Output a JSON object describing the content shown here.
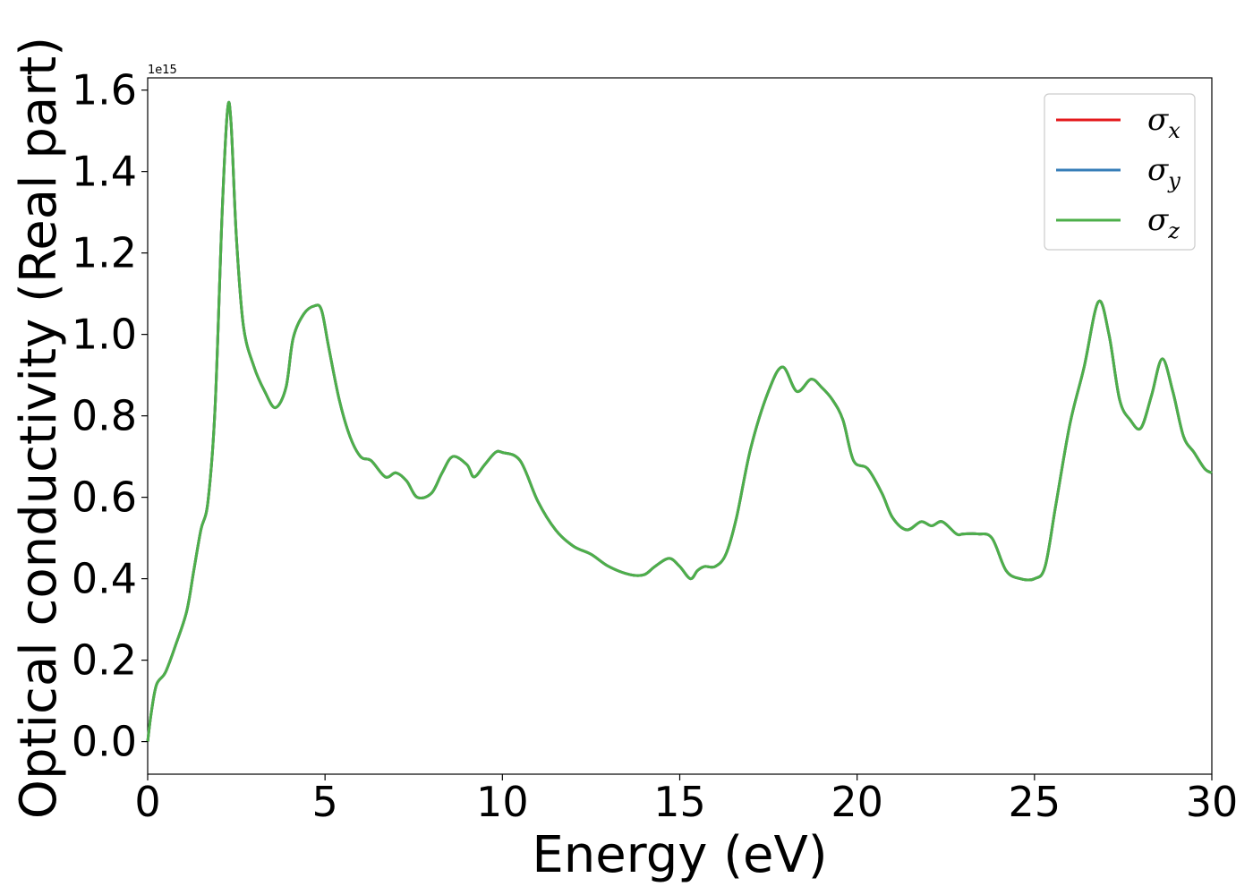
{
  "chart_data": {
    "type": "line",
    "title": "",
    "xlabel": "Energy (eV)",
    "ylabel": "Optical conductivity (Real part)",
    "y_offset_label": "1e15",
    "xlim": [
      0,
      30
    ],
    "ylim": [
      -0.08,
      1.63
    ],
    "xticks": [
      0,
      5,
      10,
      15,
      20,
      25,
      30
    ],
    "xtick_labels": [
      "0",
      "5",
      "10",
      "15",
      "20",
      "25",
      "30"
    ],
    "yticks": [
      0.0,
      0.2,
      0.4,
      0.6,
      0.8,
      1.0,
      1.2,
      1.4,
      1.6
    ],
    "ytick_labels": [
      "0.0",
      "0.2",
      "0.4",
      "0.6",
      "0.8",
      "1.0",
      "1.2",
      "1.4",
      "1.6"
    ],
    "grid": false,
    "legend": "top-right",
    "x": [
      0,
      0.1,
      0.25,
      0.5,
      0.8,
      1.1,
      1.3,
      1.5,
      1.7,
      1.9,
      2.1,
      2.25,
      2.35,
      2.5,
      2.7,
      3.0,
      3.3,
      3.6,
      3.9,
      4.1,
      4.4,
      4.7,
      4.9,
      5.1,
      5.4,
      5.7,
      6.0,
      6.3,
      6.7,
      7.0,
      7.3,
      7.6,
      8.0,
      8.3,
      8.6,
      9.0,
      9.2,
      9.5,
      9.8,
      10.0,
      10.5,
      11.0,
      11.5,
      12.0,
      12.5,
      13.0,
      13.6,
      14.0,
      14.3,
      14.7,
      15.0,
      15.3,
      15.5,
      15.7,
      16.0,
      16.3,
      16.6,
      17.0,
      17.5,
      17.9,
      18.3,
      18.7,
      19.0,
      19.3,
      19.6,
      19.9,
      20.3,
      20.7,
      21.0,
      21.4,
      21.8,
      22.1,
      22.4,
      22.8,
      23.0,
      23.4,
      23.8,
      24.2,
      24.6,
      25.0,
      25.3,
      25.6,
      26.0,
      26.4,
      26.8,
      27.1,
      27.4,
      27.7,
      28.0,
      28.3,
      28.6,
      28.9,
      29.2,
      29.5,
      29.8,
      30.0
    ],
    "series": [
      {
        "name": "σx",
        "color": "#e41a1c",
        "values": [
          0.0,
          0.07,
          0.14,
          0.17,
          0.24,
          0.32,
          0.42,
          0.52,
          0.59,
          0.82,
          1.3,
          1.55,
          1.52,
          1.24,
          1.02,
          0.92,
          0.86,
          0.82,
          0.87,
          0.99,
          1.05,
          1.07,
          1.06,
          0.97,
          0.84,
          0.75,
          0.7,
          0.69,
          0.65,
          0.66,
          0.64,
          0.6,
          0.61,
          0.66,
          0.7,
          0.68,
          0.65,
          0.68,
          0.71,
          0.71,
          0.69,
          0.59,
          0.52,
          0.48,
          0.46,
          0.43,
          0.41,
          0.41,
          0.43,
          0.45,
          0.43,
          0.4,
          0.42,
          0.43,
          0.43,
          0.46,
          0.55,
          0.72,
          0.86,
          0.92,
          0.86,
          0.89,
          0.87,
          0.84,
          0.79,
          0.69,
          0.67,
          0.61,
          0.55,
          0.52,
          0.54,
          0.53,
          0.54,
          0.51,
          0.51,
          0.51,
          0.5,
          0.42,
          0.4,
          0.4,
          0.43,
          0.58,
          0.78,
          0.92,
          1.08,
          1.0,
          0.84,
          0.79,
          0.77,
          0.85,
          0.94,
          0.86,
          0.75,
          0.71,
          0.67,
          0.66
        ]
      },
      {
        "name": "σy",
        "color": "#377eb8",
        "values": [
          0.0,
          0.07,
          0.14,
          0.17,
          0.24,
          0.32,
          0.42,
          0.52,
          0.59,
          0.82,
          1.3,
          1.55,
          1.52,
          1.24,
          1.02,
          0.92,
          0.86,
          0.82,
          0.87,
          0.99,
          1.05,
          1.07,
          1.06,
          0.97,
          0.84,
          0.75,
          0.7,
          0.69,
          0.65,
          0.66,
          0.64,
          0.6,
          0.61,
          0.66,
          0.7,
          0.68,
          0.65,
          0.68,
          0.71,
          0.71,
          0.69,
          0.59,
          0.52,
          0.48,
          0.46,
          0.43,
          0.41,
          0.41,
          0.43,
          0.45,
          0.43,
          0.4,
          0.42,
          0.43,
          0.43,
          0.46,
          0.55,
          0.72,
          0.86,
          0.92,
          0.86,
          0.89,
          0.87,
          0.84,
          0.79,
          0.69,
          0.67,
          0.61,
          0.55,
          0.52,
          0.54,
          0.53,
          0.54,
          0.51,
          0.51,
          0.51,
          0.5,
          0.42,
          0.4,
          0.4,
          0.43,
          0.58,
          0.78,
          0.92,
          1.08,
          1.0,
          0.84,
          0.79,
          0.77,
          0.85,
          0.94,
          0.86,
          0.75,
          0.71,
          0.67,
          0.66
        ]
      },
      {
        "name": "σz",
        "color": "#4daf4a",
        "values": [
          0.0,
          0.07,
          0.14,
          0.17,
          0.24,
          0.32,
          0.42,
          0.52,
          0.59,
          0.82,
          1.3,
          1.55,
          1.52,
          1.24,
          1.02,
          0.92,
          0.86,
          0.82,
          0.87,
          0.99,
          1.05,
          1.07,
          1.06,
          0.97,
          0.84,
          0.75,
          0.7,
          0.69,
          0.65,
          0.66,
          0.64,
          0.6,
          0.61,
          0.66,
          0.7,
          0.68,
          0.65,
          0.68,
          0.71,
          0.71,
          0.69,
          0.59,
          0.52,
          0.48,
          0.46,
          0.43,
          0.41,
          0.41,
          0.43,
          0.45,
          0.43,
          0.4,
          0.42,
          0.43,
          0.43,
          0.46,
          0.55,
          0.72,
          0.86,
          0.92,
          0.86,
          0.89,
          0.87,
          0.84,
          0.79,
          0.69,
          0.67,
          0.61,
          0.55,
          0.52,
          0.54,
          0.53,
          0.54,
          0.51,
          0.51,
          0.51,
          0.5,
          0.42,
          0.4,
          0.4,
          0.43,
          0.58,
          0.78,
          0.92,
          1.08,
          1.0,
          0.84,
          0.79,
          0.77,
          0.85,
          0.94,
          0.86,
          0.75,
          0.71,
          0.67,
          0.66
        ]
      }
    ],
    "legend_entries": [
      {
        "symbol": "σ",
        "sub": "x",
        "color": "#e41a1c"
      },
      {
        "symbol": "σ",
        "sub": "y",
        "color": "#377eb8"
      },
      {
        "symbol": "σ",
        "sub": "z",
        "color": "#4daf4a"
      }
    ]
  }
}
